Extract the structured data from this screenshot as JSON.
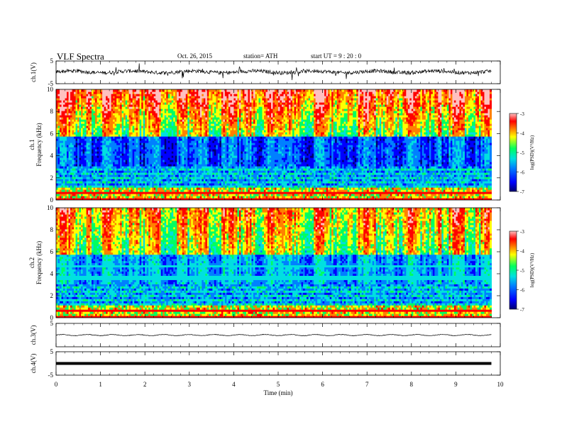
{
  "header": {
    "title": "VLF  Spectra",
    "date": "Oct. 26, 2015",
    "station": "station= ATH",
    "start_ut": "start  UT  =   9  : 20 : 0"
  },
  "chart_data": [
    {
      "type": "line",
      "name": "ch1-waveform",
      "ylabel": "ch.1(V)",
      "ylim": [
        -5,
        5
      ],
      "yticks": [
        "5",
        "-5"
      ],
      "baseline_v": 0.2,
      "trace_color": "#000000"
    },
    {
      "type": "heatmap",
      "name": "ch1-spectrogram",
      "ylabel": "Frequency  (kHz)",
      "channel_label": "ch.1",
      "ylim": [
        0,
        10
      ],
      "yticks": [
        "0",
        "2",
        "4",
        "6",
        "8",
        "10"
      ],
      "colorbar": {
        "label": "log(PSD)(V²/Hz)",
        "range": [
          -7,
          -3
        ],
        "ticks": [
          "-3",
          "-4",
          "-5",
          "-6",
          "-7"
        ]
      }
    },
    {
      "type": "heatmap",
      "name": "ch2-spectrogram",
      "ylabel": "Frequency  (kHz)",
      "channel_label": "ch.2",
      "ylim": [
        0,
        10
      ],
      "yticks": [
        "0",
        "2",
        "4",
        "6",
        "8",
        "10"
      ],
      "colorbar": {
        "label": "log(PSD)(V²/Hz)",
        "range": [
          -7,
          -3
        ],
        "ticks": [
          "-3",
          "-4",
          "-5",
          "-6",
          "-7"
        ]
      }
    },
    {
      "type": "line",
      "name": "ch3-waveform",
      "ylabel": "ch.3(V)",
      "ylim": [
        -5,
        5
      ],
      "yticks": [
        "5"
      ],
      "baseline_v": 0.0
    },
    {
      "type": "line",
      "name": "ch4-waveform",
      "ylabel": "ch.4(V)",
      "ylim": [
        -5,
        5
      ],
      "yticks": [
        "5",
        "-5"
      ],
      "baseline_v": 0.0
    }
  ],
  "xaxis": {
    "xlabel": "Time  (min)",
    "xlim": [
      0,
      10
    ],
    "ticks": [
      "0",
      "1",
      "2",
      "3",
      "4",
      "5",
      "6",
      "7",
      "8",
      "9",
      "10"
    ],
    "data_end_min": 9.8
  },
  "colormap": [
    "#000070",
    "#0000ff",
    "#0080ff",
    "#00e0e0",
    "#00ff60",
    "#ffff00",
    "#ff8000",
    "#ff0000",
    "#ffc0c0"
  ]
}
